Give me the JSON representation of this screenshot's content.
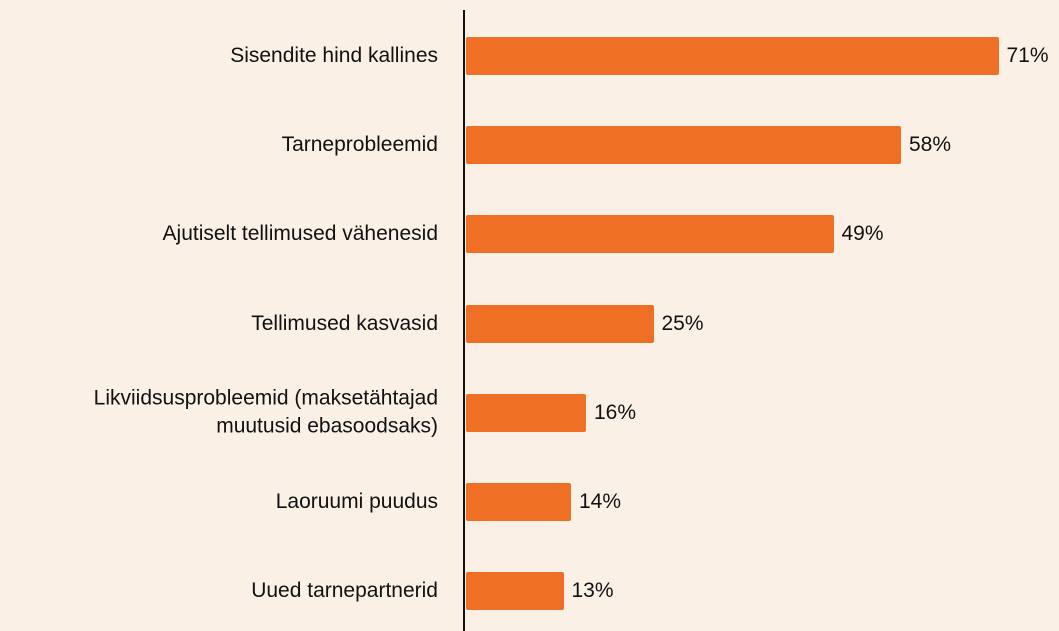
{
  "chart_data": {
    "type": "bar",
    "orientation": "horizontal",
    "categories": [
      "Sisendite hind kallines",
      "Tarneprobleemid",
      "Ajutiselt tellimused vähenesid",
      "Tellimused kasvasid",
      "Likviidsusprobleemid (maksetähtajad muutusid ebasoodsaks)",
      "Laoruumi puudus",
      "Uued tarnepartnerid"
    ],
    "values": [
      71,
      58,
      49,
      25,
      16,
      14,
      13
    ],
    "value_labels": [
      "71%",
      "58%",
      "49%",
      "25%",
      "16%",
      "14%",
      "13%"
    ],
    "color": "#ef7024"
  }
}
